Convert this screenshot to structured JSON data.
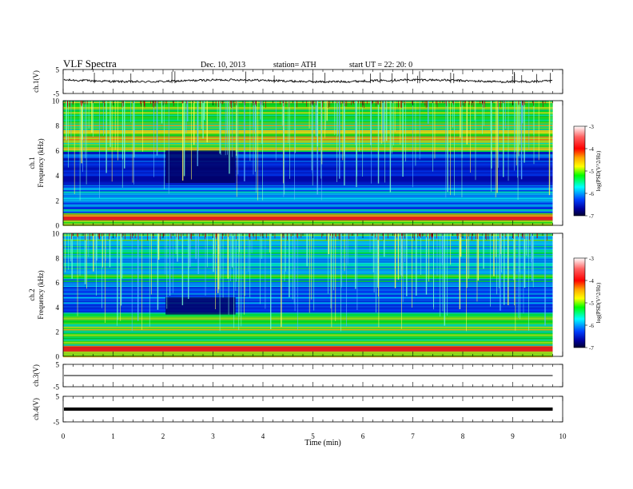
{
  "header": {
    "title": "VLF  Spectra",
    "date": "Dec. 10, 2013",
    "station": "station= ATH",
    "start": "start  UT =   22: 20: 0"
  },
  "colorbar": {
    "label": "log(PSD(V^2/Hz)",
    "ticks": [
      "-3",
      "-4",
      "-5",
      "-6",
      "-7"
    ],
    "colors": [
      "#ff0000",
      "#ffff00",
      "#00ff00",
      "#00ffff",
      "#0000ff",
      "#000040"
    ]
  },
  "chart_data": [
    {
      "type": "line",
      "panel": "ch1-waveform",
      "ylabel": "ch.1(V)",
      "ylim": [
        -5,
        5
      ],
      "yticks": [
        "5",
        "-5"
      ],
      "description_series": [
        {
          "x": [
            0,
            9.8
          ],
          "y": [
            0.3,
            0.3
          ]
        }
      ],
      "xlim": [
        0,
        10
      ]
    },
    {
      "type": "heatmap",
      "panel": "ch1-spectrogram",
      "ylabel": "ch.1\nFrequency (kHz)",
      "ylim": [
        0,
        10
      ],
      "yticks": [
        "10",
        "8",
        "6",
        "4",
        "2",
        "0"
      ],
      "xlim": [
        0,
        10
      ],
      "data_end_min": 9.8,
      "color_scale": [
        -7,
        -3
      ],
      "quiet_segment_min": [
        2.05,
        3.45
      ]
    },
    {
      "type": "heatmap",
      "panel": "ch2-spectrogram",
      "ylabel": "ch.2\nFrequency (kHz)",
      "ylim": [
        0,
        10
      ],
      "yticks": [
        "10",
        "8",
        "6",
        "4",
        "2",
        "0"
      ],
      "xlim": [
        0,
        10
      ],
      "data_end_min": 9.8,
      "color_scale": [
        -7,
        -3
      ],
      "quiet_segment_min": [
        2.05,
        3.45
      ]
    },
    {
      "type": "line",
      "panel": "ch3-waveform",
      "ylabel": "ch.3(V)",
      "ylim": [
        -5,
        5
      ],
      "yticks": [
        "5",
        "-5"
      ],
      "xlim": [
        0,
        10
      ],
      "level": 0
    },
    {
      "type": "line",
      "panel": "ch4-waveform",
      "ylabel": "ch.4(V)",
      "ylim": [
        -5,
        5
      ],
      "yticks": [
        "5",
        "-5"
      ],
      "xlim": [
        0,
        10
      ],
      "level": 0
    }
  ],
  "xaxis": {
    "label": "Time  (min)",
    "ticks": [
      "0",
      "1",
      "2",
      "3",
      "4",
      "5",
      "6",
      "7",
      "8",
      "9",
      "10"
    ]
  }
}
